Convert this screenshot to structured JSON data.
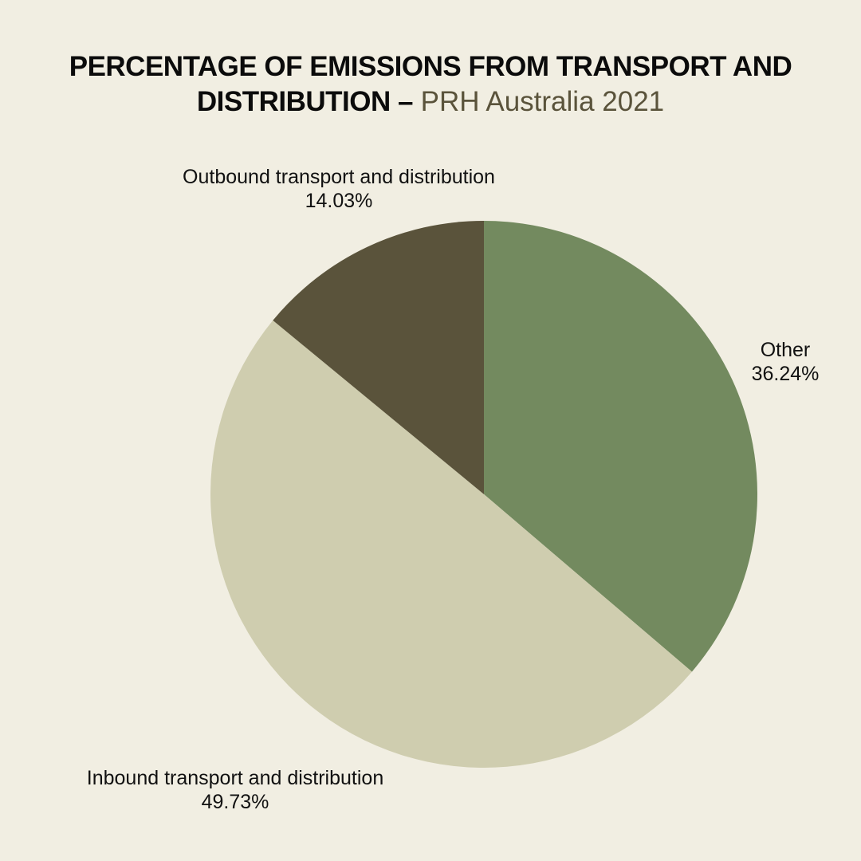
{
  "header": {
    "title_bold_line1": "PERCENTAGE OF EMISSIONS FROM TRANSPORT AND",
    "title_bold_line2": "DISTRIBUTION –",
    "title_subtitle": "PRH Australia 2021"
  },
  "colors": {
    "background": "#F1EEE2",
    "other": "#738A5F",
    "inbound": "#CFCDAF",
    "outbound": "#5A533B",
    "subtitle": "#5A533B"
  },
  "labels": {
    "outbound_name": "Outbound transport and distribution",
    "outbound_value": "14.03%",
    "other_name": "Other",
    "other_value": "36.24%",
    "inbound_name": "Inbound transport and distribution",
    "inbound_value": "49.73%"
  },
  "chart_data": {
    "type": "pie",
    "title": "PERCENTAGE OF EMISSIONS FROM TRANSPORT AND DISTRIBUTION – PRH Australia 2021",
    "categories": [
      "Other",
      "Inbound transport and distribution",
      "Outbound transport and distribution"
    ],
    "values": [
      36.24,
      49.73,
      14.03
    ],
    "unit": "%",
    "colors": [
      "#738A5F",
      "#CFCDAF",
      "#5A533B"
    ],
    "start_angle": "12 o'clock, clockwise",
    "legend": "none (direct labels)"
  }
}
